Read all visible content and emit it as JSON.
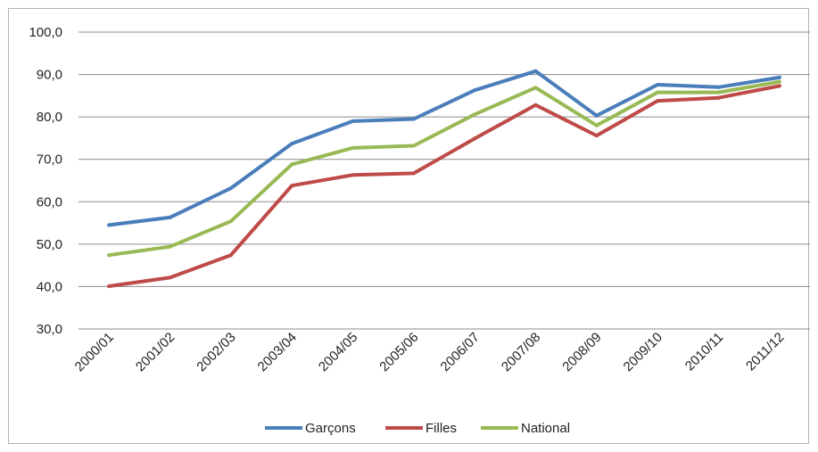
{
  "chart_data": {
    "type": "line",
    "title": "",
    "xlabel": "",
    "ylabel": "",
    "categories": [
      "2000/01",
      "2001/02",
      "2002/03",
      "2003/04",
      "2004/05",
      "2005/06",
      "2006/07",
      "2007/08",
      "2008/09",
      "2009/10",
      "2010/11",
      "2011/12"
    ],
    "ylim": [
      30,
      100
    ],
    "yticks": [
      "30,0",
      "40,0",
      "50,0",
      "60,0",
      "70,0",
      "80,0",
      "90,0",
      "100,0"
    ],
    "grid": true,
    "legend_position": "bottom",
    "series": [
      {
        "name": "Garçons",
        "color": "#4a7ebb",
        "values": [
          54.5,
          56.3,
          63.2,
          73.7,
          79.0,
          79.5,
          86.3,
          90.8,
          80.3,
          87.6,
          87.0,
          89.3
        ]
      },
      {
        "name": "Filles",
        "color": "#be4b48",
        "values": [
          40.1,
          42.1,
          47.4,
          63.8,
          66.3,
          66.7,
          74.9,
          82.8,
          75.6,
          83.8,
          84.5,
          87.3
        ]
      },
      {
        "name": "National",
        "color": "#98b954",
        "values": [
          47.4,
          49.4,
          55.4,
          68.8,
          72.7,
          73.2,
          80.6,
          86.9,
          78.0,
          85.8,
          85.8,
          88.3
        ]
      }
    ]
  }
}
